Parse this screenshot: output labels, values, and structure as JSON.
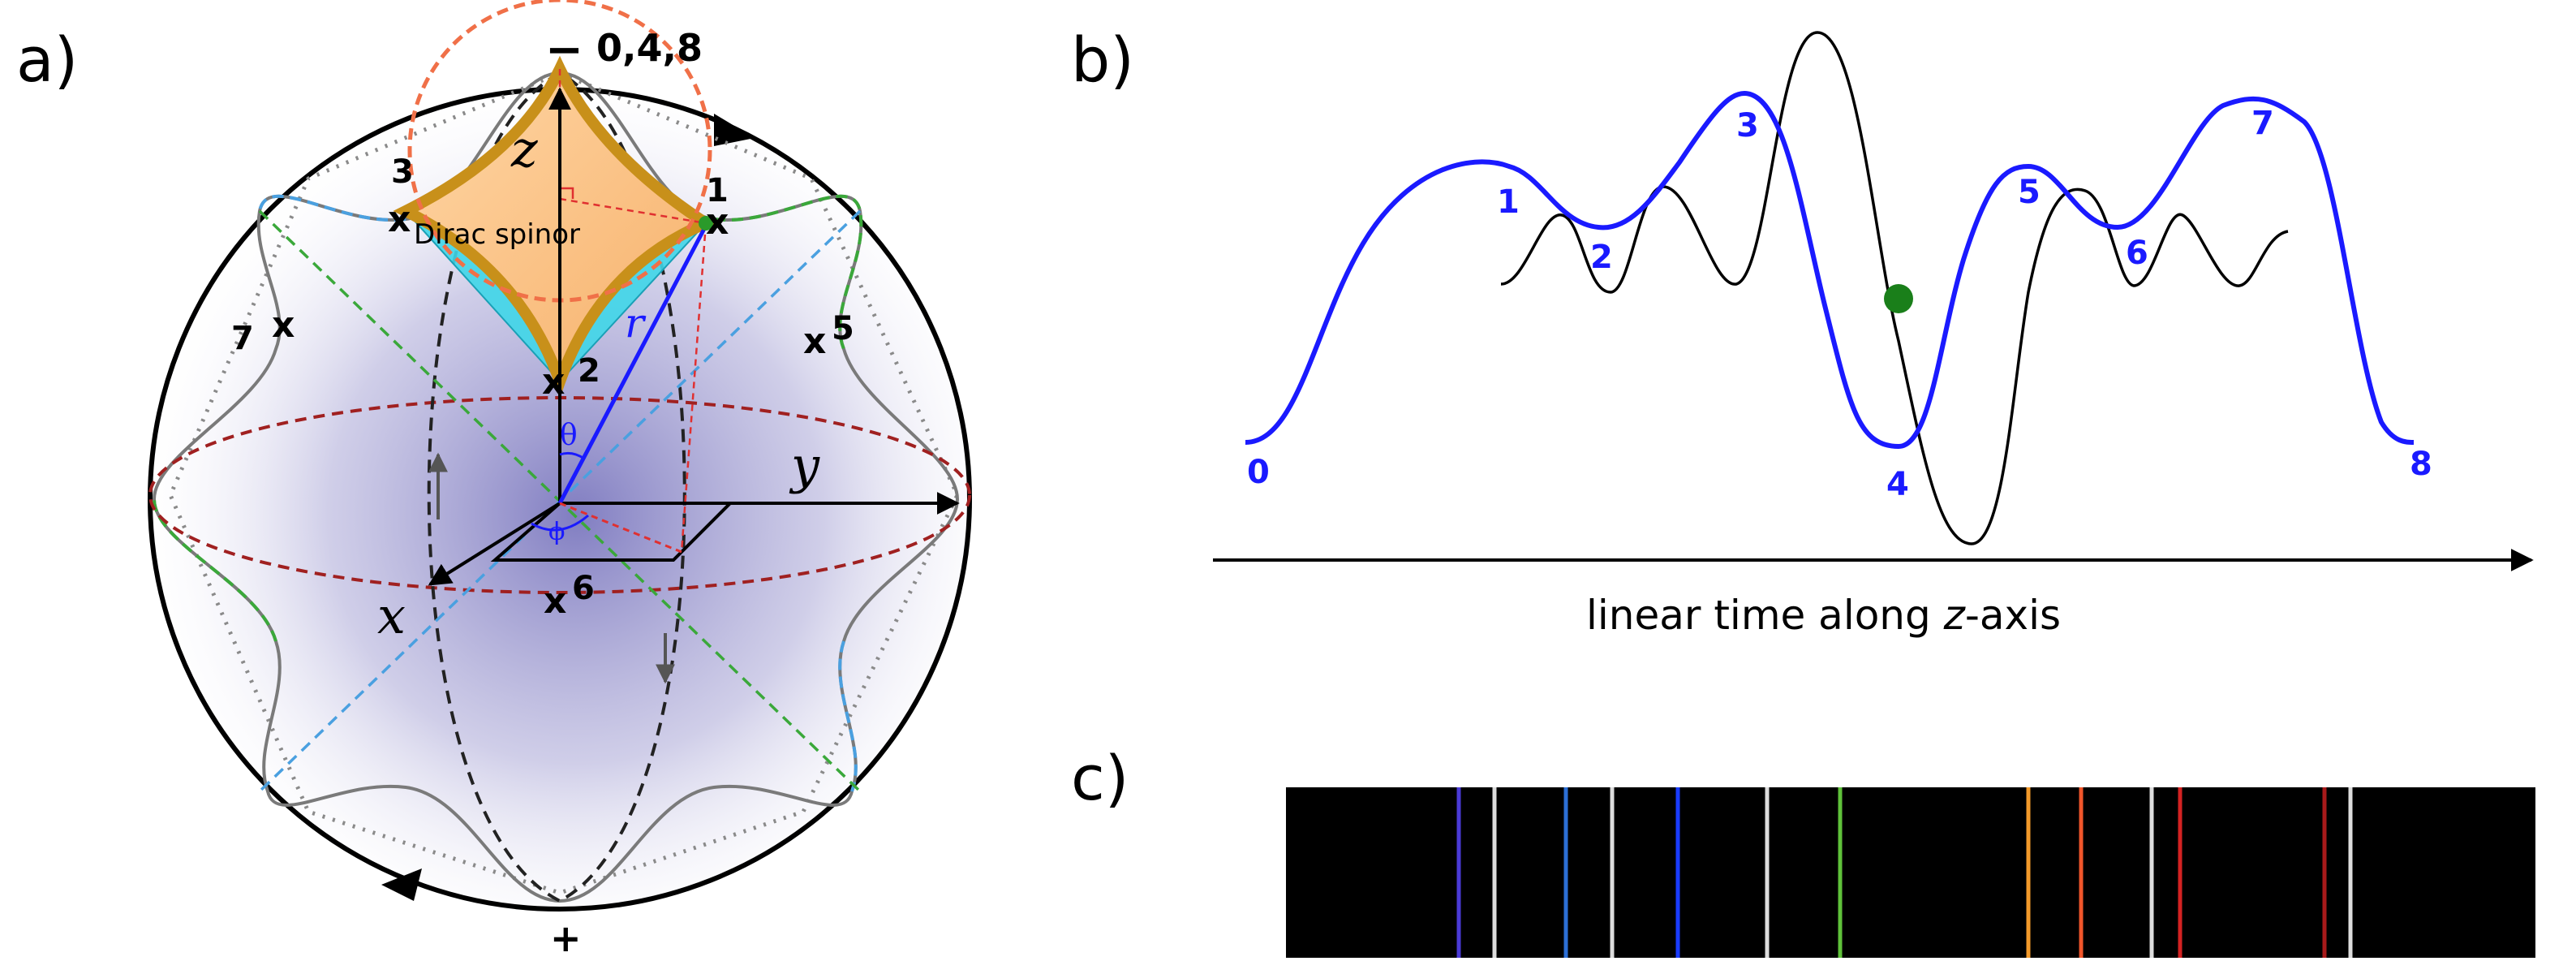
{
  "panel_a": {
    "panel_label": "a)",
    "pole_top_sign": "−",
    "pole_top_label": "0,4,8",
    "pole_bottom_sign": "+",
    "axis_z": "z",
    "axis_y": "y",
    "axis_x": "x",
    "radius_label": "r",
    "theta_label": "θ",
    "phi_label": "ϕ",
    "spinor_label": "Dirac spinor",
    "points": [
      {
        "mark": "x",
        "number": "1"
      },
      {
        "mark": "x",
        "number": "2"
      },
      {
        "mark": "x",
        "number": "3"
      },
      {
        "mark": "x",
        "number": "5"
      },
      {
        "mark": "x",
        "number": "6"
      },
      {
        "mark": "x",
        "number": "7"
      }
    ]
  },
  "panel_b": {
    "panel_label": "b)",
    "xaxis_label_prefix": "linear time along ",
    "xaxis_label_italic": "z",
    "xaxis_label_suffix": "-axis",
    "blue_point_labels": [
      "0",
      "1",
      "2",
      "3",
      "4",
      "5",
      "6",
      "7",
      "8"
    ],
    "colors": {
      "blue_curve": "#1a1aff",
      "black_curve": "#000000",
      "marker": "#1a7f1a"
    }
  },
  "panel_c": {
    "panel_label": "c)",
    "background": "#000000",
    "separator_color": "#dddddd",
    "lines": [
      {
        "color": "#4a3ad6"
      },
      {
        "color": "#2c6fd6"
      },
      {
        "color": "#1a3cff"
      },
      {
        "color": "#5fc23a"
      },
      {
        "color": "#f39a2a"
      },
      {
        "color": "#f0552a"
      },
      {
        "color": "#d42222"
      },
      {
        "color": "#a81a1a"
      }
    ]
  }
}
